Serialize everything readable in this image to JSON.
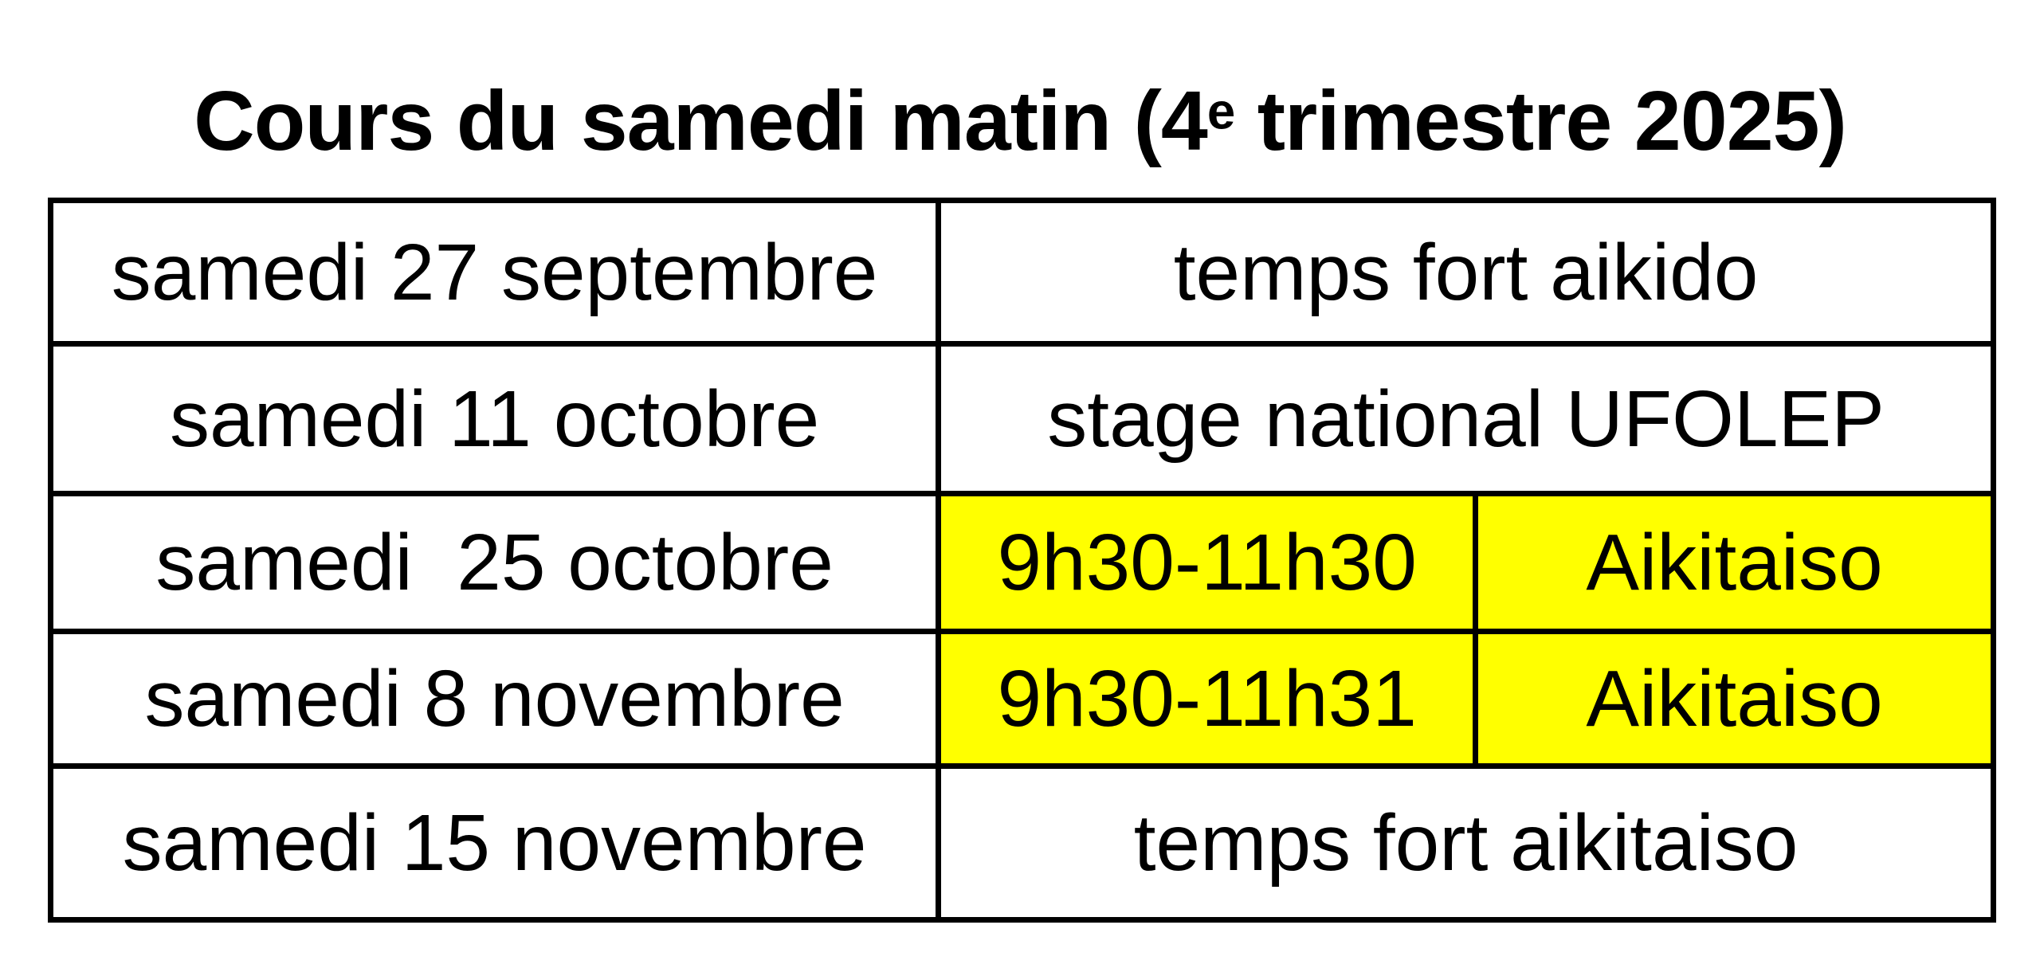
{
  "page": {
    "title": {
      "text_before_sup": "Cours du samedi matin (4",
      "superscript": "e",
      "text_after_sup": " trimestre 2025)"
    }
  },
  "colors": {
    "highlight_yellow": "#ffff00",
    "border_black": "#000000",
    "page_background": "#ffffff",
    "text": "#000000"
  },
  "schedule": {
    "rows": [
      {
        "date": "samedi 27 septembre",
        "detail": "temps fort aikido"
      },
      {
        "date": "samedi 11 octobre",
        "detail": "stage national UFOLEP"
      },
      {
        "date": "samedi  25 octobre",
        "time": "9h30-11h30",
        "activity": "Aikitaiso"
      },
      {
        "date": "samedi 8 novembre",
        "time": "9h30-11h31",
        "activity": "Aikitaiso"
      },
      {
        "date": "samedi 15 novembre",
        "detail": "temps fort aikitaiso"
      }
    ]
  }
}
